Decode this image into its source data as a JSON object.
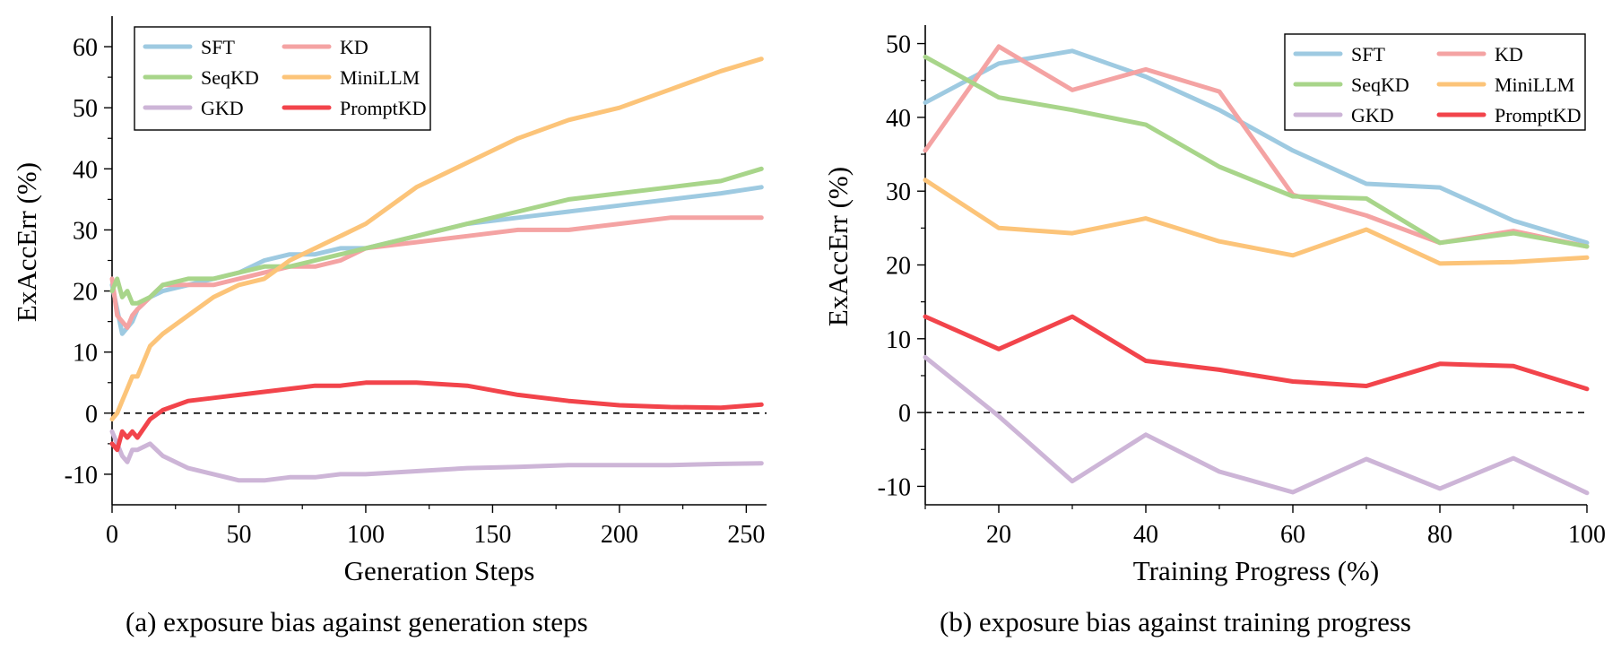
{
  "colors": {
    "SFT": "#9ecae1",
    "KD": "#f4a3a3",
    "SeqKD": "#a8d58a",
    "MiniLLM": "#fcc479",
    "GKD": "#cdb5d7",
    "PromptKD": "#f2444b"
  },
  "chart_data": [
    {
      "type": "line",
      "xlabel": "Generation Steps",
      "ylabel": "ExAccErr (%)",
      "xlim": [
        0,
        258
      ],
      "ylim": [
        -15,
        65
      ],
      "xticks": [
        0,
        50,
        100,
        150,
        200,
        250
      ],
      "yticks": [
        -10,
        0,
        10,
        20,
        30,
        40,
        50,
        60
      ],
      "reference_line": {
        "y": 0,
        "style": "dashed"
      },
      "legend": {
        "position": "top-left",
        "columns": 2
      },
      "caption": "(a)  exposure bias against generation steps",
      "series": [
        {
          "name": "SFT",
          "x": [
            0,
            2,
            4,
            6,
            8,
            10,
            15,
            20,
            30,
            40,
            50,
            60,
            70,
            80,
            90,
            100,
            120,
            140,
            160,
            180,
            200,
            220,
            240,
            256
          ],
          "y": [
            21,
            17,
            13,
            14,
            15,
            17,
            19,
            20,
            21,
            22,
            23,
            25,
            26,
            26,
            27,
            27,
            29,
            31,
            32,
            33,
            34,
            35,
            36,
            37
          ]
        },
        {
          "name": "KD",
          "x": [
            0,
            2,
            4,
            6,
            8,
            10,
            15,
            20,
            30,
            40,
            50,
            60,
            70,
            80,
            90,
            100,
            120,
            140,
            160,
            180,
            200,
            220,
            240,
            256
          ],
          "y": [
            22,
            16,
            15,
            14,
            16,
            17,
            19,
            21,
            21,
            21,
            22,
            23,
            24,
            24,
            25,
            27,
            28,
            29,
            30,
            30,
            31,
            32,
            32,
            32
          ]
        },
        {
          "name": "SeqKD",
          "x": [
            0,
            2,
            4,
            6,
            8,
            10,
            15,
            20,
            30,
            40,
            50,
            60,
            70,
            80,
            90,
            100,
            120,
            140,
            160,
            180,
            200,
            220,
            240,
            256
          ],
          "y": [
            20,
            22,
            19,
            20,
            18,
            18,
            19,
            21,
            22,
            22,
            23,
            24,
            24,
            25,
            26,
            27,
            29,
            31,
            33,
            35,
            36,
            37,
            38,
            40
          ]
        },
        {
          "name": "MiniLLM",
          "x": [
            0,
            2,
            4,
            6,
            8,
            10,
            15,
            20,
            30,
            40,
            50,
            60,
            70,
            80,
            90,
            100,
            120,
            140,
            160,
            180,
            200,
            220,
            240,
            256
          ],
          "y": [
            -1,
            0,
            2,
            4,
            6,
            6,
            11,
            13,
            16,
            19,
            21,
            22,
            25,
            27,
            29,
            31,
            37,
            41,
            45,
            48,
            50,
            53,
            56,
            58
          ]
        },
        {
          "name": "GKD",
          "x": [
            0,
            2,
            4,
            6,
            8,
            10,
            15,
            20,
            30,
            40,
            50,
            60,
            70,
            80,
            90,
            100,
            120,
            140,
            160,
            180,
            200,
            220,
            240,
            256
          ],
          "y": [
            -3,
            -5,
            -7,
            -8,
            -6,
            -6,
            -5,
            -7,
            -9,
            -10,
            -11,
            -11,
            -10.5,
            -10.5,
            -10,
            -10,
            -9.5,
            -9,
            -8.8,
            -8.5,
            -8.5,
            -8.5,
            -8.3,
            -8.2
          ]
        },
        {
          "name": "PromptKD",
          "x": [
            0,
            2,
            4,
            6,
            8,
            10,
            15,
            20,
            30,
            40,
            50,
            60,
            70,
            80,
            90,
            100,
            120,
            140,
            160,
            180,
            200,
            220,
            240,
            256
          ],
          "y": [
            -5,
            -6,
            -3,
            -4,
            -3,
            -4,
            -1,
            0.5,
            2,
            2.5,
            3,
            3.5,
            4,
            4.5,
            4.5,
            5,
            5,
            4.5,
            3,
            2,
            1.3,
            1,
            0.9,
            1.4
          ]
        }
      ]
    },
    {
      "type": "line",
      "xlabel": "Training Progress (%)",
      "ylabel": "ExAccErr (%)",
      "xlim": [
        10,
        100
      ],
      "ylim": [
        -12.5,
        52.5
      ],
      "xticks": [
        20,
        40,
        60,
        80,
        100
      ],
      "yticks": [
        -10,
        0,
        10,
        20,
        30,
        40,
        50
      ],
      "reference_line": {
        "y": 0,
        "style": "dashed"
      },
      "legend": {
        "position": "top-right",
        "columns": 2
      },
      "caption": "(b)  exposure bias against training progress",
      "series": [
        {
          "name": "SFT",
          "x": [
            10,
            20,
            30,
            40,
            50,
            60,
            70,
            80,
            90,
            100
          ],
          "y": [
            42,
            47.3,
            49,
            45.5,
            41,
            35.5,
            31,
            30.5,
            26,
            23
          ]
        },
        {
          "name": "KD",
          "x": [
            10,
            20,
            30,
            40,
            50,
            60,
            70,
            80,
            90,
            100
          ],
          "y": [
            35.5,
            49.6,
            43.7,
            46.5,
            43.5,
            29.5,
            26.7,
            23,
            24.6,
            22.5
          ]
        },
        {
          "name": "SeqKD",
          "x": [
            10,
            20,
            30,
            40,
            50,
            60,
            70,
            80,
            90,
            100
          ],
          "y": [
            48.2,
            42.7,
            41,
            39,
            33.3,
            29.3,
            29,
            23,
            24.3,
            22.5
          ]
        },
        {
          "name": "MiniLLM",
          "x": [
            10,
            20,
            30,
            40,
            50,
            60,
            70,
            80,
            90,
            100
          ],
          "y": [
            31.5,
            25,
            24.3,
            26.3,
            23.2,
            21.3,
            24.8,
            20.2,
            20.4,
            21
          ]
        },
        {
          "name": "GKD",
          "x": [
            10,
            20,
            30,
            40,
            50,
            60,
            70,
            80,
            90,
            100
          ],
          "y": [
            7.5,
            -0.5,
            -9.3,
            -3,
            -8,
            -10.8,
            -6.3,
            -10.3,
            -6.2,
            -10.9
          ]
        },
        {
          "name": "PromptKD",
          "x": [
            10,
            20,
            30,
            40,
            50,
            60,
            70,
            80,
            90,
            100
          ],
          "y": [
            13,
            8.6,
            13,
            7,
            5.8,
            4.2,
            3.6,
            6.6,
            6.3,
            3.2
          ]
        }
      ]
    }
  ]
}
